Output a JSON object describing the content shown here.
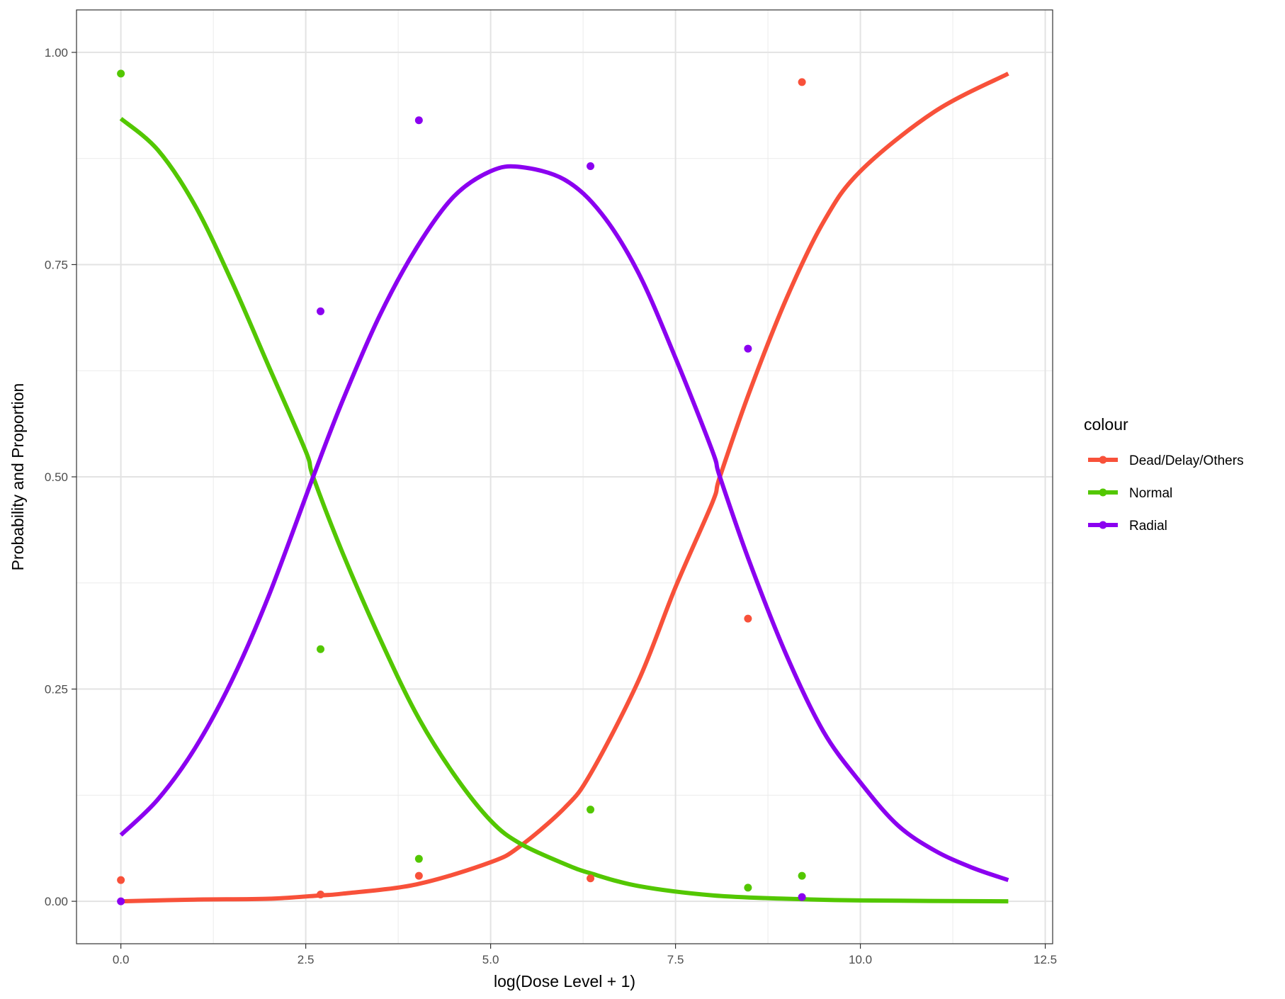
{
  "chart_data": {
    "type": "line",
    "xlabel": "log(Dose Level + 1)",
    "ylabel": "Probability and Proportion",
    "xlim": [
      -0.6,
      12.6
    ],
    "ylim": [
      -0.05,
      1.05
    ],
    "x_ticks": [
      0.0,
      2.5,
      5.0,
      7.5,
      10.0,
      12.5
    ],
    "x_tick_labels": [
      "0.0",
      "2.5",
      "5.0",
      "7.5",
      "10.0",
      "12.5"
    ],
    "y_ticks": [
      0.0,
      0.25,
      0.5,
      0.75,
      1.0
    ],
    "y_tick_labels": [
      "0.00",
      "0.25",
      "0.50",
      "0.75",
      "1.00"
    ],
    "grid": true,
    "legend": {
      "title": "colour",
      "position": "right"
    },
    "curve_x_range": [
      0,
      12
    ],
    "series": [
      {
        "name": "Dead/Delay/Others",
        "color": "#F8513A",
        "curve": [
          [
            0,
            0.0
          ],
          [
            1,
            0.002
          ],
          [
            2,
            0.003
          ],
          [
            2.7,
            0.007
          ],
          [
            3,
            0.009
          ],
          [
            4,
            0.02
          ],
          [
            5,
            0.046
          ],
          [
            5.4,
            0.065
          ],
          [
            6,
            0.11
          ],
          [
            6.35,
            0.15
          ],
          [
            7,
            0.26
          ],
          [
            7.5,
            0.37
          ],
          [
            8,
            0.47
          ],
          [
            8.1,
            0.5
          ],
          [
            8.5,
            0.6
          ],
          [
            9,
            0.71
          ],
          [
            9.5,
            0.8
          ],
          [
            10,
            0.86
          ],
          [
            11,
            0.93
          ],
          [
            12,
            0.975
          ]
        ],
        "points": [
          [
            0,
            0.025
          ],
          [
            2.7,
            0.008
          ],
          [
            4.03,
            0.03
          ],
          [
            6.35,
            0.027
          ],
          [
            8.48,
            0.333
          ],
          [
            9.21,
            0.965
          ]
        ]
      },
      {
        "name": "Normal",
        "color": "#53C700",
        "curve": [
          [
            0,
            0.922
          ],
          [
            0.5,
            0.885
          ],
          [
            1,
            0.82
          ],
          [
            1.5,
            0.73
          ],
          [
            2,
            0.63
          ],
          [
            2.5,
            0.53
          ],
          [
            2.6,
            0.5
          ],
          [
            3,
            0.41
          ],
          [
            3.5,
            0.31
          ],
          [
            4,
            0.22
          ],
          [
            4.5,
            0.15
          ],
          [
            5,
            0.095
          ],
          [
            5.4,
            0.068
          ],
          [
            6,
            0.044
          ],
          [
            6.35,
            0.033
          ],
          [
            7,
            0.018
          ],
          [
            8,
            0.007
          ],
          [
            9,
            0.003
          ],
          [
            10,
            0.001
          ],
          [
            12,
            0.0
          ]
        ],
        "points": [
          [
            0,
            0.975
          ],
          [
            2.7,
            0.297
          ],
          [
            4.03,
            0.05
          ],
          [
            6.35,
            0.108
          ],
          [
            8.48,
            0.016
          ],
          [
            9.21,
            0.03
          ]
        ]
      },
      {
        "name": "Radial",
        "color": "#8B00F0",
        "curve": [
          [
            0,
            0.078
          ],
          [
            0.5,
            0.12
          ],
          [
            1,
            0.18
          ],
          [
            1.5,
            0.26
          ],
          [
            2,
            0.36
          ],
          [
            2.6,
            0.5
          ],
          [
            3,
            0.59
          ],
          [
            3.5,
            0.69
          ],
          [
            4,
            0.77
          ],
          [
            4.5,
            0.83
          ],
          [
            5,
            0.86
          ],
          [
            5.4,
            0.865
          ],
          [
            6,
            0.85
          ],
          [
            6.5,
            0.81
          ],
          [
            7,
            0.74
          ],
          [
            7.5,
            0.64
          ],
          [
            8,
            0.53
          ],
          [
            8.1,
            0.5
          ],
          [
            8.5,
            0.4
          ],
          [
            9,
            0.29
          ],
          [
            9.5,
            0.2
          ],
          [
            10,
            0.14
          ],
          [
            10.5,
            0.09
          ],
          [
            11,
            0.06
          ],
          [
            11.5,
            0.04
          ],
          [
            12,
            0.025
          ]
        ],
        "points": [
          [
            0,
            0.0
          ],
          [
            2.7,
            0.695
          ],
          [
            4.03,
            0.92
          ],
          [
            6.35,
            0.866
          ],
          [
            8.48,
            0.651
          ],
          [
            9.21,
            0.005
          ]
        ]
      }
    ]
  }
}
